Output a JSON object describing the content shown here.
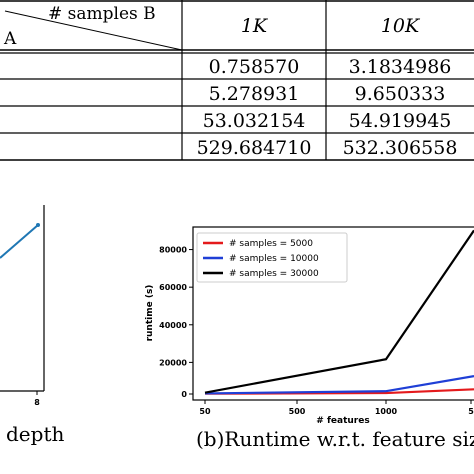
{
  "table": {
    "header_top_label": "# samples B",
    "header_left_label": "A",
    "columns": [
      "1K",
      "10K"
    ],
    "rows": [
      [
        "0.758570",
        "3.1834986"
      ],
      [
        "5.278931",
        "9.650333"
      ],
      [
        "53.032154",
        "54.919945"
      ],
      [
        "529.684710",
        "532.306558"
      ]
    ]
  },
  "left_figure": {
    "xtick_last": "8",
    "xlabel": "depth",
    "line_color": "#1f77b4"
  },
  "chart_data": {
    "type": "line",
    "xlabel": "# features",
    "ylabel": "runtime (s)",
    "x_ticks": [
      "50",
      "500",
      "1000",
      "5"
    ],
    "y_ticks": [
      "0",
      "20000",
      "40000",
      "60000",
      "80000"
    ],
    "ylim": [
      0,
      92000
    ],
    "legend_position": "top-left",
    "series": [
      {
        "name": "# samples = 5000",
        "color": "#e41a1c",
        "x": [
          50,
          1000,
          2000
        ],
        "y": [
          200,
          500,
          2500
        ]
      },
      {
        "name": "# samples = 10000",
        "color": "#1f3fd6",
        "x": [
          50,
          1000,
          2000
        ],
        "y": [
          300,
          1500,
          9500
        ]
      },
      {
        "name": "# samples = 30000",
        "color": "#000000",
        "x": [
          50,
          1000,
          2000
        ],
        "y": [
          700,
          18500,
          87000
        ]
      }
    ]
  },
  "caption": "(b)Runtime w.r.t. feature size"
}
